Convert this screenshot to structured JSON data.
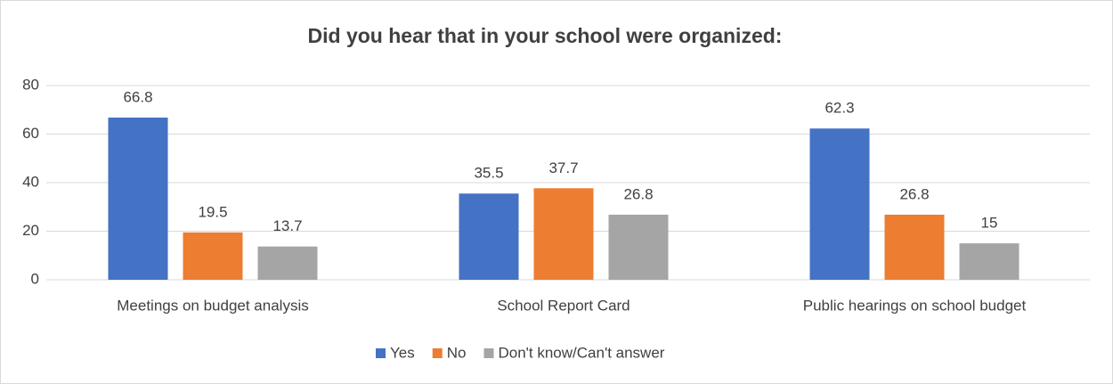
{
  "chart_data": {
    "type": "bar",
    "title": "Did you hear that in your school were organized:",
    "categories": [
      "Meetings on budget analysis",
      "School Report Card",
      "Public hearings on school budget"
    ],
    "series": [
      {
        "name": "Yes",
        "color": "#4472c4",
        "values": [
          66.8,
          35.5,
          62.3
        ]
      },
      {
        "name": "No",
        "color": "#ed7d31",
        "values": [
          19.5,
          37.7,
          26.8
        ]
      },
      {
        "name": "Don't know/Can't answer",
        "color": "#a5a5a5",
        "values": [
          13.7,
          26.8,
          15
        ]
      }
    ],
    "ylim": [
      0,
      80
    ],
    "yticks": [
      0,
      20,
      40,
      60,
      80
    ],
    "grid": true,
    "legend": "bottom"
  }
}
